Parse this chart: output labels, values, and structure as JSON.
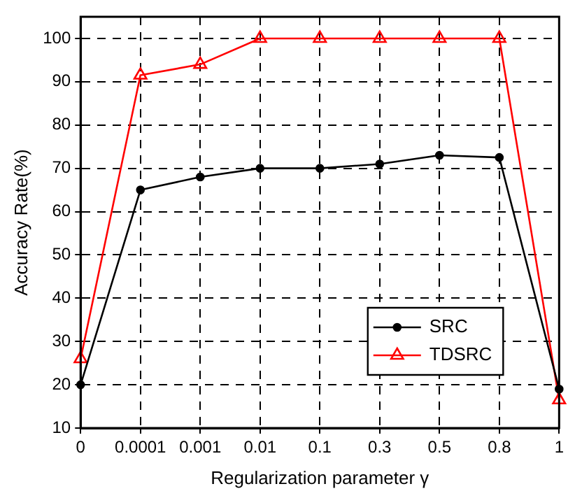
{
  "chart_data": {
    "type": "line",
    "xlabel": "Regularization parameter γ",
    "ylabel": "Accuracy Rate(%)",
    "categories": [
      "0",
      "0.0001",
      "0.001",
      "0.01",
      "0.1",
      "0.3",
      "0.5",
      "0.8",
      "1"
    ],
    "series": [
      {
        "name": "SRC",
        "color": "#000000",
        "marker": "circle",
        "values": [
          20,
          65,
          68,
          70,
          70,
          71,
          73,
          72.5,
          19
        ]
      },
      {
        "name": "TDSRC",
        "color": "#ff0000",
        "marker": "triangle",
        "values": [
          26,
          91.5,
          94,
          100,
          100,
          100,
          100,
          100,
          16.5
        ]
      }
    ],
    "ylim": [
      10,
      105
    ],
    "yticks": [
      10,
      20,
      30,
      40,
      50,
      60,
      70,
      80,
      90,
      100
    ],
    "grid": true,
    "legend": "bottom right",
    "line_style": "solid"
  }
}
